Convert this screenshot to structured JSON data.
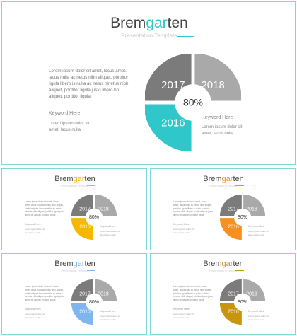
{
  "main": {
    "title_pre": "Brem",
    "title_hl": "gar",
    "title_post": "ten",
    "subtitle": "Presentation Template",
    "accent": "#2fc7c9",
    "text_block": "Lorem ipsum dolor sit amet, lacus amet. lacus nulla ac netus nibh aliquet, porttitor ligula libero is nulla ac netus ninetus nibh aliquet, porttitor ligula justo libero bh aliquet, porttitor ligula",
    "keyword_left": "Keyword  Here",
    "note_left": "Lorem ipsum dolor sit amet, lacus nulla",
    "keyword_right": "Keyword  Here",
    "note_right": "Lorem ipsum dolor sit amet, lacus nulla",
    "center_value": "80%",
    "labels": [
      "2017",
      "2018",
      "2016"
    ]
  },
  "thumbnails": [
    {
      "accent": "#f5b700",
      "center_value": "80%",
      "labels": [
        "2017",
        "2018",
        "2016"
      ]
    },
    {
      "accent": "#f7901e",
      "center_value": "80%",
      "labels": [
        "2017",
        "2018",
        "2016"
      ]
    },
    {
      "accent": "#7fb6f0",
      "center_value": "80%",
      "labels": [
        "2017",
        "2018",
        "2016"
      ]
    },
    {
      "accent": "#c8960c",
      "center_value": "80%",
      "labels": [
        "2017",
        "2018",
        "2016"
      ]
    }
  ],
  "colors": {
    "dark_gray": "#7b7b7b",
    "light_gray": "#a9a9a9",
    "border": "#7fd8d6"
  }
}
